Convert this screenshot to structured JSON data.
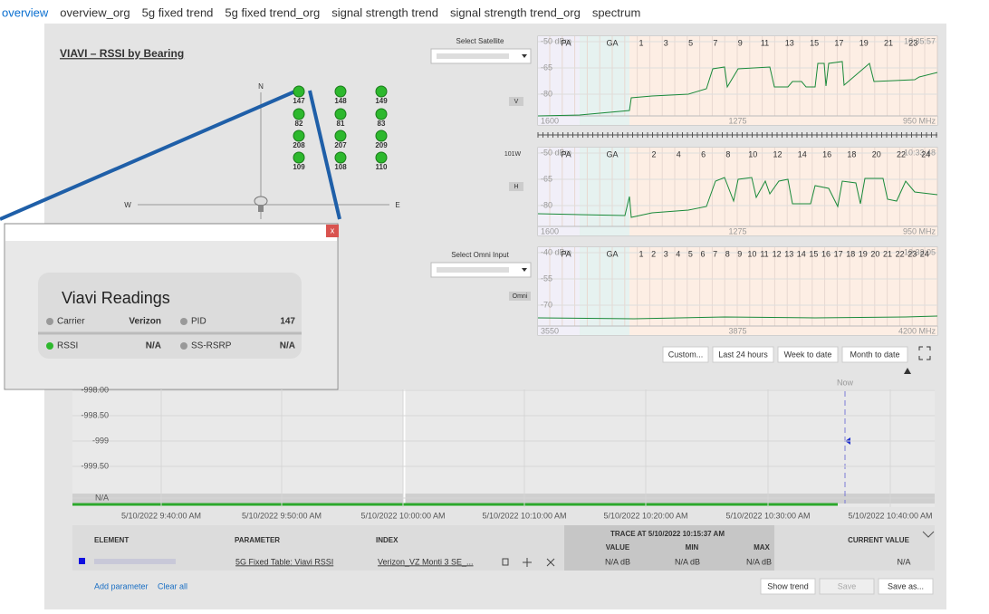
{
  "tabs": [
    "overview",
    "overview_org",
    "5g fixed trend",
    "5g fixed trend_org",
    "signal strength trend",
    "signal strength trend_org",
    "spectrum"
  ],
  "bearing": {
    "title": "VIAVI – RSSI by Bearing",
    "compass": {
      "n": "N",
      "w": "W",
      "e": "E"
    },
    "nodes": [
      "147",
      "148",
      "149",
      "82",
      "81",
      "83",
      "208",
      "207",
      "209",
      "109",
      "108",
      "110"
    ]
  },
  "popup": {
    "close": "x",
    "title": "Viavi Readings",
    "rows": [
      {
        "label": "Carrier",
        "value": "Verizon"
      },
      {
        "label": "PID",
        "value": "147"
      },
      {
        "label": "RSSI",
        "value": "N/A"
      },
      {
        "label": "SS-RSRP",
        "value": "N/A"
      }
    ]
  },
  "spectrum": {
    "select_satellite": "Select Satellite",
    "select_omni": "Select Omni Input",
    "pol_v": "V",
    "pol_h": "H",
    "sat": "101W",
    "omni": "Omni",
    "panels": [
      {
        "y": [
          "-50 dBm",
          "-65",
          "-80"
        ],
        "x": [
          "1600",
          "1275",
          "950 MHz"
        ],
        "time": "10:35:57",
        "bands": [
          "PA",
          "GA"
        ],
        "channels": [
          "1",
          "3",
          "5",
          "7",
          "9",
          "11",
          "13",
          "15",
          "17",
          "19",
          "21",
          "23"
        ]
      },
      {
        "y": [
          "-50 dBm",
          "-65",
          "-80"
        ],
        "x": [
          "1600",
          "1275",
          "950 MHz"
        ],
        "time": "10:33:48",
        "bands": [
          "PA",
          "GA"
        ],
        "channels": [
          "2",
          "4",
          "6",
          "8",
          "10",
          "12",
          "14",
          "16",
          "18",
          "20",
          "22",
          "24"
        ]
      },
      {
        "y": [
          "-40 dBm",
          "-55",
          "-70"
        ],
        "x": [
          "3550",
          "3875",
          "4200 MHz"
        ],
        "time": "10:32:05",
        "bands": [
          "PA",
          "GA"
        ],
        "channels": [
          "1",
          "2",
          "3",
          "4",
          "5",
          "6",
          "7",
          "8",
          "9",
          "10",
          "11",
          "12",
          "13",
          "14",
          "15",
          "16",
          "17",
          "18",
          "19",
          "20",
          "21",
          "22",
          "23",
          "24"
        ]
      }
    ]
  },
  "buttons": [
    "Custom...",
    "Last 24 hours",
    "Week to date",
    "Month to date"
  ],
  "trend": {
    "yticks": [
      "-998.00",
      "-998.50",
      "-999",
      "-999.50",
      "N/A"
    ],
    "xticks": [
      "5/10/2022 9:40:00 AM",
      "5/10/2022 9:50:00 AM",
      "5/10/2022 10:00:00 AM",
      "5/10/2022 10:10:00 AM",
      "5/10/2022 10:20:00 AM",
      "5/10/2022 10:30:00 AM",
      "5/10/2022 10:40:00 AM"
    ],
    "now": "Now"
  },
  "table": {
    "headers": {
      "element": "ELEMENT",
      "parameter": "PARAMETER",
      "index": "INDEX",
      "trace": "TRACE AT 5/10/2022 10:15:37 AM",
      "value": "VALUE",
      "min": "MIN",
      "max": "MAX",
      "current": "CURRENT VALUE"
    },
    "row": {
      "parameter": "5G Fixed Table: Viavi RSSI",
      "index": "Verizon_VZ Monti 3 SE_...",
      "value": "N/A dB",
      "min": "N/A dB",
      "max": "N/A dB",
      "current": "N/A"
    },
    "links": [
      "Add parameter",
      "Clear all"
    ],
    "buttons": [
      "Show trend",
      "Save",
      "Save as..."
    ]
  }
}
